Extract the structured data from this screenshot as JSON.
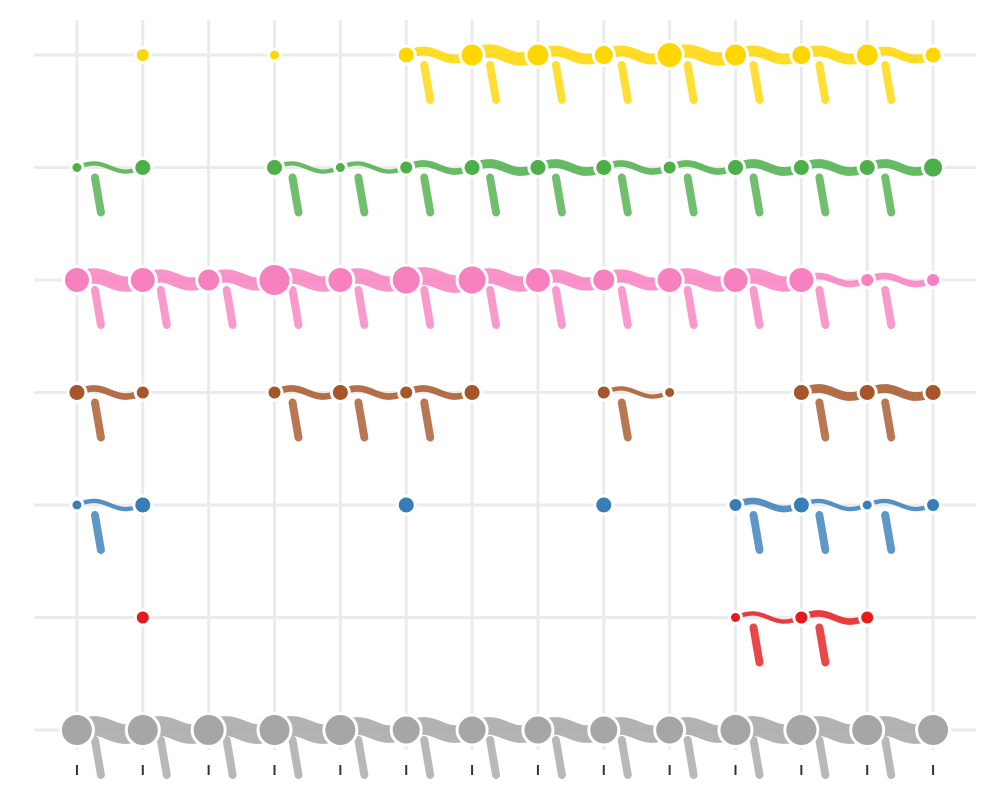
{
  "chart_data": {
    "type": "node-flow",
    "x": [
      1,
      2,
      3,
      4,
      5,
      6,
      7,
      8,
      9,
      10,
      11,
      12,
      13,
      14
    ],
    "xlim": [
      0.5,
      14.5
    ],
    "xticks": [
      1,
      2,
      3,
      4,
      5,
      6,
      7,
      8,
      9,
      10,
      11,
      12,
      13,
      14
    ],
    "grid": true,
    "series": [
      {
        "color": "#ffd700",
        "values": [
          null,
          3,
          null,
          2,
          null,
          4,
          6,
          6,
          5,
          7,
          6,
          5,
          6,
          4
        ]
      },
      {
        "color": "#4daf4a",
        "values": [
          2,
          4,
          null,
          4,
          2,
          3,
          4,
          4,
          4,
          3,
          4,
          4,
          4,
          5
        ]
      },
      {
        "color": "#f781bf",
        "values": [
          7,
          7,
          6,
          9,
          7,
          8,
          8,
          7,
          6,
          7,
          7,
          7,
          3,
          3
        ]
      },
      {
        "color": "#a65628",
        "values": [
          4,
          3,
          null,
          3,
          4,
          3,
          4,
          null,
          3,
          2,
          null,
          4,
          4,
          4
        ]
      },
      {
        "color": "#377eb8",
        "values": [
          2,
          4,
          null,
          null,
          null,
          4,
          null,
          null,
          4,
          null,
          3,
          4,
          2,
          3
        ]
      },
      {
        "color": "#e41a1c",
        "values": [
          null,
          3,
          null,
          null,
          null,
          null,
          null,
          null,
          null,
          null,
          2,
          3,
          3,
          null
        ]
      },
      {
        "color": "#a6a6a6",
        "values": [
          9,
          9,
          9,
          9,
          9,
          8,
          8,
          8,
          8,
          8,
          9,
          9,
          9,
          9
        ]
      }
    ]
  }
}
